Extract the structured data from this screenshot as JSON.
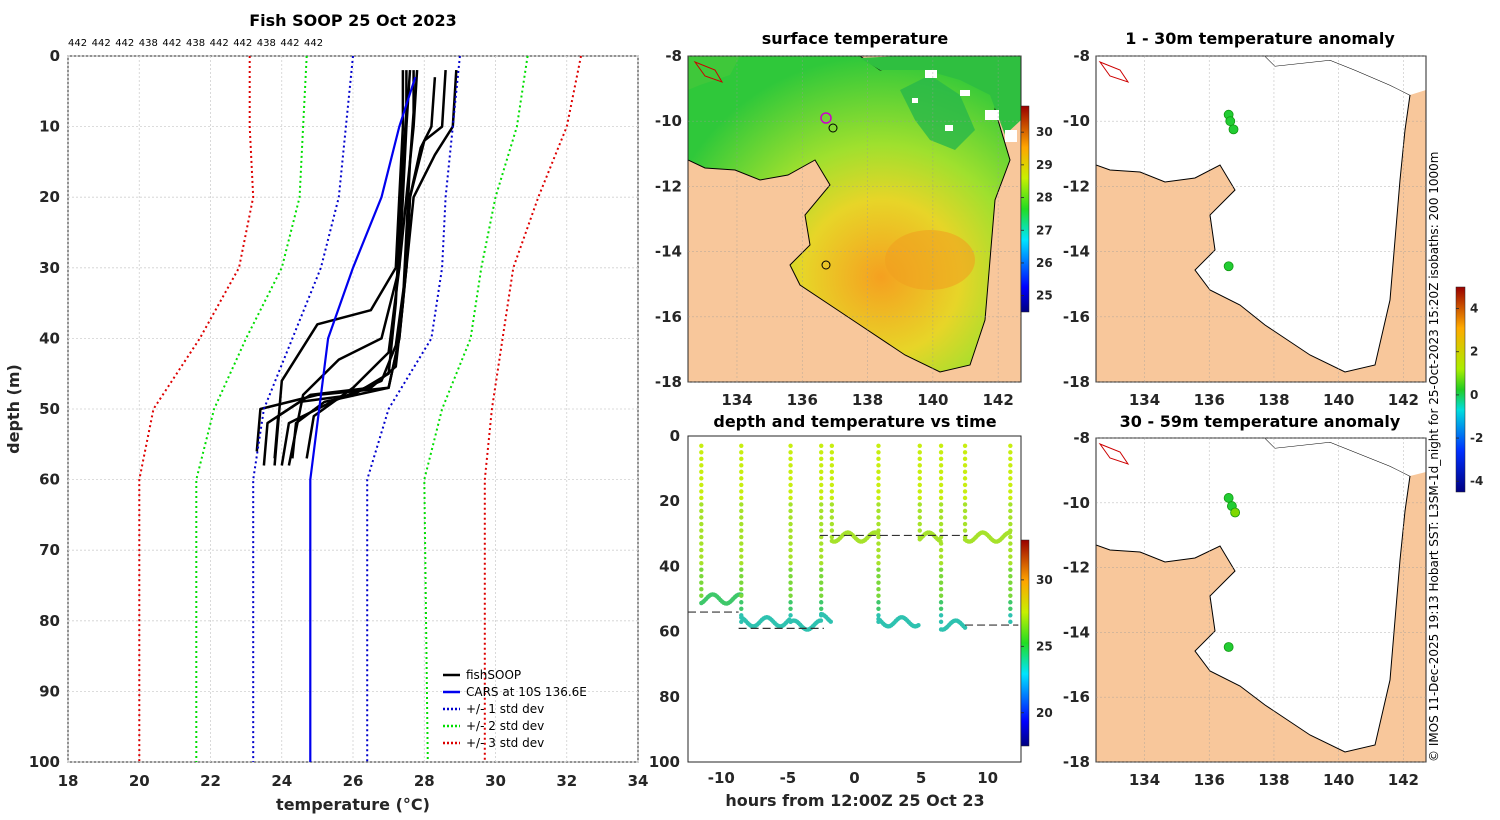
{
  "credit": "© IMOS 11-Dec-2025 19:13 Hobart SST: L3SM-1d_night for 25-Oct-2023 15:20Z isobaths: 200  1000m",
  "chart_data": [
    {
      "type": "line",
      "title": "Fish SOOP 25 Oct 2023",
      "top_labels": [
        "442",
        "442",
        "442",
        "438",
        "442",
        "438",
        "442",
        "442",
        "438",
        "442",
        "442"
      ],
      "xlabel": "temperature (°C)",
      "ylabel": "depth (m)",
      "xlim": [
        18,
        34
      ],
      "ylim": [
        0,
        100
      ],
      "y_reversed": true,
      "grid": true,
      "xticks": [
        18,
        20,
        22,
        24,
        26,
        28,
        30,
        32,
        34
      ],
      "yticks": [
        0,
        10,
        20,
        30,
        40,
        50,
        60,
        70,
        80,
        90,
        100
      ],
      "legend_position": "bottom-right",
      "series": [
        {
          "name": "fishSOOP",
          "color": "#000000",
          "style": "solid",
          "profiles": [
            {
              "x": [
                27.5,
                27.5,
                27.4,
                27.3,
                27.2,
                27.0,
                26.0,
                24.5,
                23.6,
                23.5
              ],
              "y": [
                2,
                8,
                15,
                25,
                35,
                45,
                48,
                49,
                52,
                58
              ]
            },
            {
              "x": [
                27.7,
                27.7,
                27.6,
                27.5,
                27.4,
                27.2,
                26.5,
                24.8,
                23.9,
                23.8
              ],
              "y": [
                2,
                8,
                15,
                25,
                35,
                44,
                47,
                48,
                51,
                57
              ]
            },
            {
              "x": [
                28.6,
                28.5,
                28.0,
                27.6,
                27.5,
                27.3,
                27.0,
                25.0,
                23.4,
                23.3
              ],
              "y": [
                2,
                10,
                12,
                20,
                30,
                40,
                47,
                48,
                50,
                56
              ]
            },
            {
              "x": [
                28.3,
                28.2,
                27.9,
                27.6,
                27.5,
                27.2,
                26.8,
                25.4,
                24.2,
                24.0
              ],
              "y": [
                3,
                10,
                13,
                20,
                30,
                41,
                46,
                49,
                52,
                58
              ]
            },
            {
              "x": [
                28.9,
                28.8,
                28.3,
                27.7,
                27.5,
                27.3,
                27.0,
                25.2,
                24.4,
                24.3
              ],
              "y": [
                2,
                10,
                14,
                20,
                30,
                40,
                47,
                49,
                52,
                57
              ]
            },
            {
              "x": [
                27.4,
                27.4,
                27.3,
                27.2,
                26.5,
                25.0,
                24.0,
                23.8
              ],
              "y": [
                2,
                10,
                20,
                30,
                36,
                38,
                46,
                58
              ]
            },
            {
              "x": [
                27.6,
                27.5,
                27.4,
                27.3,
                26.8,
                25.6,
                24.6,
                24.2
              ],
              "y": [
                2,
                10,
                20,
                30,
                40,
                43,
                48,
                58
              ]
            },
            {
              "x": [
                27.8,
                27.7,
                27.5,
                27.3,
                27.0,
                26.0,
                24.9,
                24.7
              ],
              "y": [
                2,
                10,
                20,
                30,
                42,
                47,
                51,
                57
              ]
            }
          ]
        },
        {
          "name": "CARS at 10S 136.6E",
          "color": "#0000ee",
          "style": "solid",
          "x": [
            27.75,
            27.3,
            26.8,
            26.0,
            25.3,
            24.8,
            24.8
          ],
          "y": [
            3,
            10,
            20,
            30,
            40,
            60,
            100
          ]
        },
        {
          "name": "+/- 1 std dev",
          "color": "#0000cc",
          "style": "dotted",
          "lower": {
            "x": [
              26.0,
              25.8,
              25.6,
              25.1,
              24.3,
              23.5,
              23.2,
              23.2
            ],
            "y": [
              0,
              10,
              20,
              30,
              40,
              50,
              60,
              100
            ]
          },
          "upper": {
            "x": [
              29.0,
              28.8,
              28.6,
              28.5,
              28.2,
              27.0,
              26.4,
              26.4
            ],
            "y": [
              0,
              10,
              20,
              30,
              40,
              50,
              60,
              100
            ]
          }
        },
        {
          "name": "+/- 2 std dev",
          "color": "#00dd00",
          "style": "dotted",
          "lower": {
            "x": [
              24.7,
              24.6,
              24.5,
              24.0,
              23.0,
              22.1,
              21.6,
              21.6
            ],
            "y": [
              0,
              10,
              20,
              30,
              40,
              50,
              60,
              100
            ]
          },
          "upper": {
            "x": [
              30.9,
              30.6,
              30.0,
              29.6,
              29.3,
              28.5,
              28.0,
              28.1
            ],
            "y": [
              0,
              10,
              20,
              30,
              40,
              50,
              60,
              100
            ]
          }
        },
        {
          "name": "+/- 3 std dev",
          "color": "#dd0000",
          "style": "dotted",
          "lower": {
            "x": [
              23.1,
              23.1,
              23.2,
              22.8,
              21.7,
              20.4,
              20.0,
              20.0
            ],
            "y": [
              0,
              10,
              20,
              30,
              40,
              50,
              60,
              100
            ]
          },
          "upper": {
            "x": [
              32.4,
              32.0,
              31.2,
              30.5,
              30.2,
              29.9,
              29.7,
              29.7
            ],
            "y": [
              0,
              10,
              20,
              30,
              40,
              50,
              60,
              100
            ]
          }
        }
      ]
    },
    {
      "type": "heatmap",
      "title": "surface temperature",
      "xlim": [
        132.5,
        142.7
      ],
      "ylim": [
        -18,
        -8
      ],
      "xticks": [
        134,
        136,
        138,
        140,
        142
      ],
      "yticks": [
        -8,
        -10,
        -12,
        -14,
        -16,
        -18
      ],
      "colorbar": {
        "ticks": [
          25,
          26,
          27,
          28,
          29,
          30
        ],
        "range": [
          24.5,
          30.8
        ]
      },
      "markers": [
        {
          "x": 136.6,
          "y": -10.0
        },
        {
          "x": 136.75,
          "y": -10.3
        },
        {
          "x": 136.8,
          "y": -14.5
        }
      ]
    },
    {
      "type": "scatter",
      "title": "depth and temperature vs time",
      "xlabel": "hours from 12:00Z 25 Oct 23",
      "xlim": [
        -12.5,
        12.5
      ],
      "ylim": [
        0,
        100
      ],
      "y_reversed": true,
      "xticks": [
        -10,
        -5,
        0,
        5,
        10
      ],
      "yticks": [
        0,
        20,
        40,
        60,
        80,
        100
      ],
      "colorbar": {
        "ticks": [
          20,
          25,
          30
        ],
        "range": [
          17.5,
          33
        ]
      },
      "dive_times": [
        -11.5,
        -8.5,
        -4.8,
        -2.5,
        -1.7,
        1.8,
        4.9,
        6.5,
        8.3,
        11.7
      ],
      "dive_bottom_depth": [
        50,
        57,
        58,
        56,
        31,
        57,
        31,
        58,
        31,
        58
      ],
      "dashed_lines": [
        {
          "x": [
            -12.5,
            -8.7
          ],
          "y": [
            54,
            54
          ]
        },
        {
          "x": [
            -8.7,
            -2.3
          ],
          "y": [
            59,
            59
          ]
        },
        {
          "x": [
            -2.6,
            8.5
          ],
          "y": [
            30.5,
            30.5
          ]
        },
        {
          "x": [
            8.3,
            12.3
          ],
          "y": [
            58,
            58
          ]
        }
      ]
    },
    {
      "type": "scatter",
      "title": "1 - 30m temperature anomaly",
      "xlim": [
        132.5,
        142.7
      ],
      "ylim": [
        -18,
        -8
      ],
      "xticks": [
        134,
        136,
        138,
        140,
        142
      ],
      "yticks": [
        -8,
        -10,
        -12,
        -14,
        -16,
        -18
      ],
      "points": [
        {
          "x": 136.6,
          "y": -9.8,
          "v": 0.3
        },
        {
          "x": 136.65,
          "y": -10.0,
          "v": 0.4
        },
        {
          "x": 136.75,
          "y": -10.25,
          "v": 0.2
        },
        {
          "x": 136.6,
          "y": -14.45,
          "v": 0.3
        }
      ]
    },
    {
      "type": "scatter",
      "title": "30 - 59m temperature anomaly",
      "xlim": [
        132.5,
        142.7
      ],
      "ylim": [
        -18,
        -8
      ],
      "xticks": [
        134,
        136,
        138,
        140,
        142
      ],
      "yticks": [
        -8,
        -10,
        -12,
        -14,
        -16,
        -18
      ],
      "points": [
        {
          "x": 136.6,
          "y": -9.85,
          "v": 0.5
        },
        {
          "x": 136.7,
          "y": -10.1,
          "v": 0.3
        },
        {
          "x": 136.8,
          "y": -10.3,
          "v": 0.9
        },
        {
          "x": 136.6,
          "y": -14.45,
          "v": 0.4
        }
      ]
    },
    {
      "type": "colorbar",
      "title": "",
      "ticks": [
        4,
        2,
        0,
        -2,
        -4
      ],
      "range": [
        -4.5,
        5
      ]
    }
  ]
}
